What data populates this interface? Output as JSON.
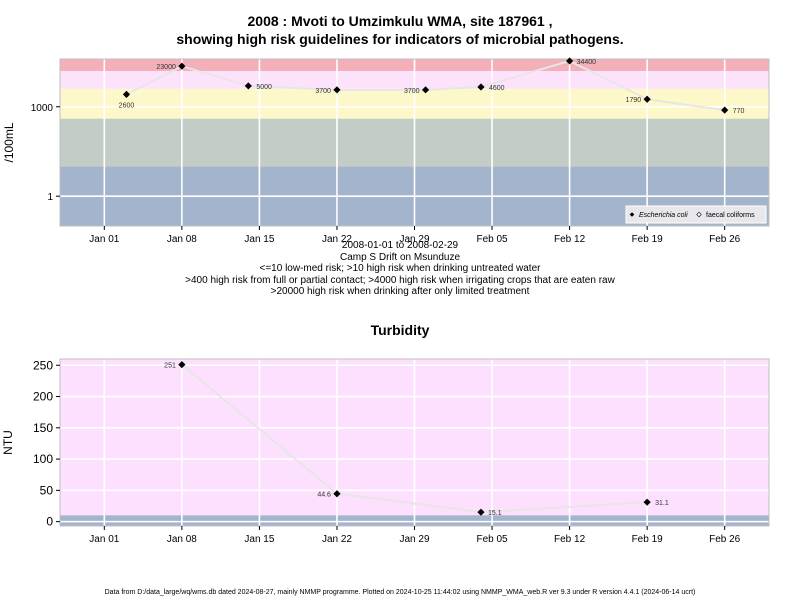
{
  "title_lines": [
    "2008 : Mvoti to Umzimkulu WMA, site 187961 ,",
    "showing high risk guidelines for indicators of microbial pathogens."
  ],
  "subtitle_lines": [
    "2008-01-01 to 2008-02-29",
    "Camp S Drift on Msunduze",
    "<=10 low-med risk; >10 high risk when drinking untreated water",
    ">400 high risk from full or partial contact; >4000 high risk when irrigating crops that are eaten raw",
    ">20000 high risk when drinking after only limited treatment"
  ],
  "footer": "Data from D:/data_large/wq/wms.db dated 2024-08-27, mainly NMMP programme. Plotted on 2024-10-25 11:44:02 using NMMP_WMA_web.R ver 9.3 under R version 4.4.1 (2024-06-14 ucrt)",
  "colors": {
    "band_blue": "#a4b4cc",
    "band_grey": "#c3cdc5",
    "band_yellow": "#fdf8c9",
    "band_pink_light": "#fce3fb",
    "band_pink": "#f7bfdf",
    "band_red": "#f4b0b9",
    "turbidity_bg": "#fde0fd",
    "line": "#e6e6e6",
    "point": "#000000"
  },
  "chart_data": [
    {
      "type": "line",
      "title": "",
      "xlabel": "",
      "ylabel": "/100mL",
      "y_scale": "log10",
      "ylim": [
        0.1,
        40000
      ],
      "xlim": [
        "2007-12-28",
        "2008-03-01"
      ],
      "x_ticks": [
        "Jan 01",
        "Jan 08",
        "Jan 15",
        "Jan 22",
        "Jan 29",
        "Feb 05",
        "Feb 12",
        "Feb 19",
        "Feb 26"
      ],
      "x_tick_dates": [
        "2008-01-01",
        "2008-01-08",
        "2008-01-15",
        "2008-01-22",
        "2008-01-29",
        "2008-02-05",
        "2008-02-12",
        "2008-02-19",
        "2008-02-26"
      ],
      "y_ticks": [
        1,
        1000
      ],
      "grid": true,
      "legend_position": "bottom-right",
      "legend": [
        "Escherichia coli",
        "faecal coliforms"
      ],
      "risk_bands": [
        10,
        400,
        4000,
        20000
      ],
      "series": [
        {
          "name": "Escherichia coli",
          "marker": "filled-diamond",
          "points": [
            {
              "x": "2008-01-03",
              "y": 2600,
              "label": "2600"
            },
            {
              "x": "2008-01-08",
              "y": 23000,
              "label": "23000"
            },
            {
              "x": "2008-01-14",
              "y": 5000,
              "label": "5000"
            },
            {
              "x": "2008-01-22",
              "y": 3700,
              "label": "3700"
            },
            {
              "x": "2008-01-30",
              "y": 3700,
              "label": "3700"
            },
            {
              "x": "2008-02-04",
              "y": 4600,
              "label": "4600"
            },
            {
              "x": "2008-02-12",
              "y": 34400,
              "label": "34400"
            },
            {
              "x": "2008-02-19",
              "y": 1790,
              "label": "1790"
            },
            {
              "x": "2008-02-26",
              "y": 770,
              "label": "770"
            }
          ]
        }
      ]
    },
    {
      "type": "line",
      "title": "Turbidity",
      "xlabel": "",
      "ylabel": "NTU",
      "ylim": [
        -7,
        260
      ],
      "xlim": [
        "2007-12-28",
        "2008-03-01"
      ],
      "x_ticks": [
        "Jan 01",
        "Jan 08",
        "Jan 15",
        "Jan 22",
        "Jan 29",
        "Feb 05",
        "Feb 12",
        "Feb 19",
        "Feb 26"
      ],
      "x_tick_dates": [
        "2008-01-01",
        "2008-01-08",
        "2008-01-15",
        "2008-01-22",
        "2008-01-29",
        "2008-02-05",
        "2008-02-12",
        "2008-02-19",
        "2008-02-26"
      ],
      "y_ticks": [
        0,
        50,
        100,
        150,
        200,
        250
      ],
      "grid": true,
      "band_upper": 10,
      "series": [
        {
          "name": "",
          "marker": "filled-diamond",
          "points": [
            {
              "x": "2008-01-08",
              "y": 251,
              "label": "251"
            },
            {
              "x": "2008-01-22",
              "y": 44.6,
              "label": "44.6"
            },
            {
              "x": "2008-02-04",
              "y": 15.1,
              "label": "15.1"
            },
            {
              "x": "2008-02-19",
              "y": 31.1,
              "label": "31.1"
            }
          ]
        }
      ]
    }
  ]
}
